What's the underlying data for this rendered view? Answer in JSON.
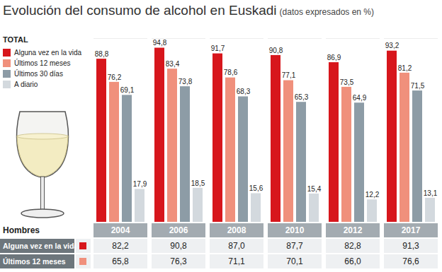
{
  "chart_data": {
    "type": "bar",
    "title": "Evolución del consumo de alcohol en Euskadi",
    "subtitle": "(datos expresados en %)",
    "legend_title": "TOTAL",
    "categories": [
      "2004",
      "2006",
      "2008",
      "2010",
      "2012",
      "2017"
    ],
    "series": [
      {
        "name": "Alguna vez en la vida",
        "color": "#d7161c",
        "values": [
          88.8,
          94.8,
          91.7,
          90.8,
          86.9,
          93.2
        ],
        "value_labels": [
          "88,8",
          "94,8",
          "91,7",
          "90,8",
          "86,9",
          "93,2"
        ]
      },
      {
        "name": "Últimos 12 meses",
        "color": "#f0907c",
        "values": [
          76.2,
          83.4,
          78.6,
          77.1,
          73.5,
          81.2
        ],
        "value_labels": [
          "76,2",
          "83,4",
          "78,6",
          "77,1",
          "73,5",
          "81,2"
        ]
      },
      {
        "name": "Últimos 30 días",
        "color": "#8d9ca6",
        "values": [
          69.1,
          73.8,
          68.3,
          65.3,
          64.9,
          71.5
        ],
        "value_labels": [
          "69,1",
          "73,8",
          "68,3",
          "65,3",
          "64,9",
          "71,5"
        ]
      },
      {
        "name": "A diario",
        "color": "#d3d9de",
        "values": [
          17.9,
          18.5,
          15.6,
          15.4,
          12.2,
          13.1
        ],
        "value_labels": [
          "17,9",
          "18,5",
          "15,6",
          "15,4",
          "12,2",
          "13,1"
        ]
      }
    ],
    "ylim": [
      0,
      100
    ],
    "yticks": [],
    "grid": false,
    "data_labels": true,
    "tick_labels": "x",
    "legend": "top-left"
  },
  "table": {
    "title": "Hombres",
    "rows": [
      {
        "label": "Alguna vez en la vida",
        "color": "#d7161c",
        "cells": [
          "82,2",
          "90,8",
          "87,0",
          "87,7",
          "82,8",
          "91,3"
        ]
      },
      {
        "label": "Últimos 12 meses",
        "color": "#f0907c",
        "cells": [
          "65,8",
          "76,3",
          "71,1",
          "70,1",
          "66,0",
          "76,6"
        ]
      }
    ]
  }
}
